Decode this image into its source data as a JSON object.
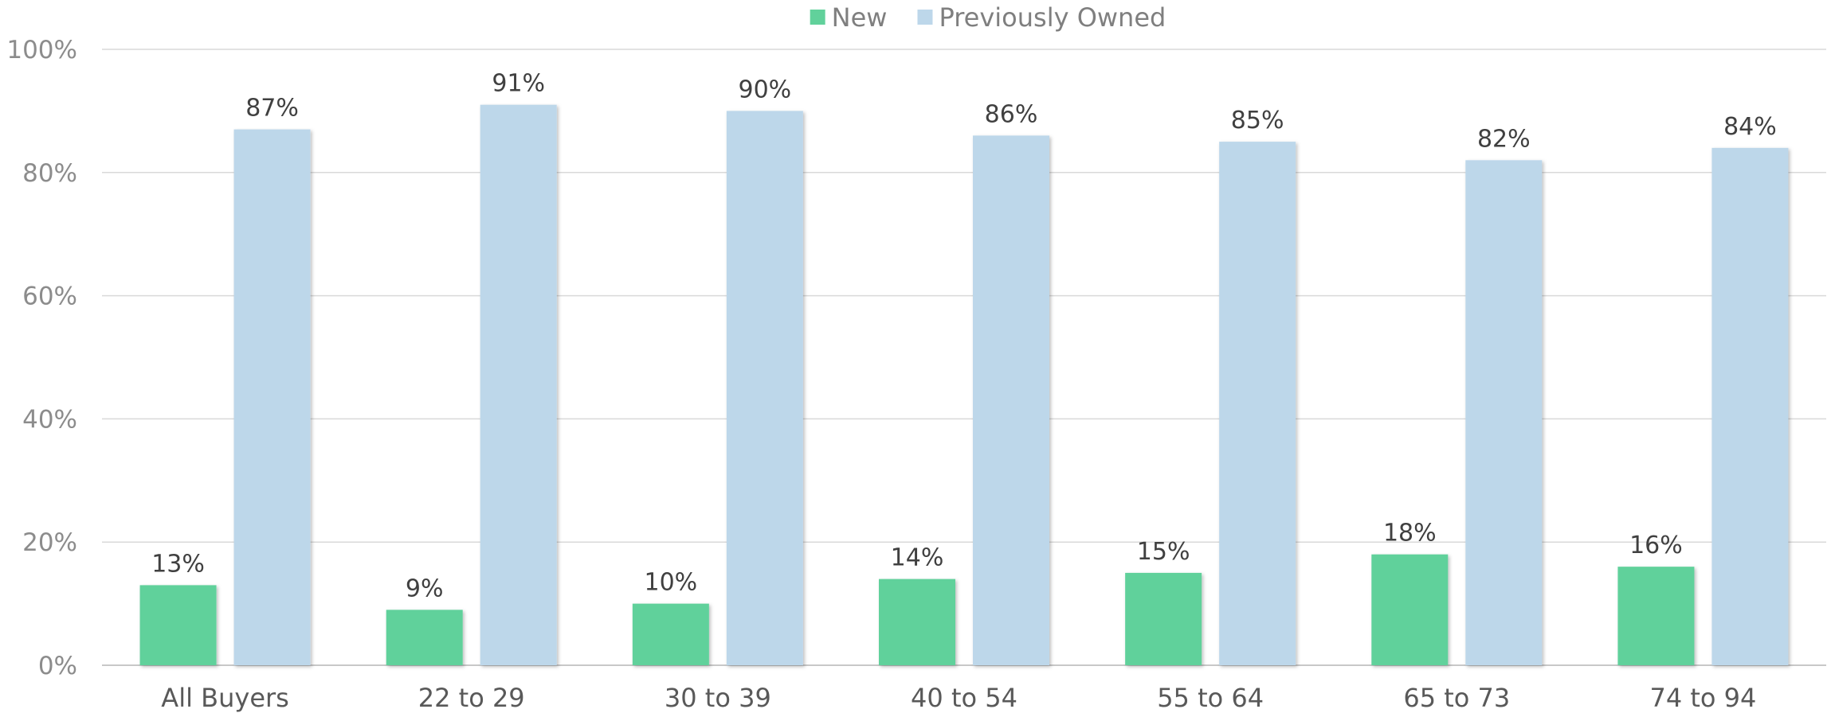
{
  "chart_data": {
    "type": "bar",
    "categories": [
      "All Buyers",
      "22 to 29",
      "30 to 39",
      "40 to 54",
      "55 to 64",
      "65 to 73",
      "74 to 94"
    ],
    "series": [
      {
        "name": "New",
        "values": [
          13,
          9,
          10,
          14,
          15,
          18,
          16
        ],
        "color": "#61d19b"
      },
      {
        "name": "Previously Owned",
        "values": [
          87,
          91,
          90,
          86,
          85,
          82,
          84
        ],
        "color": "#bdd7ea"
      }
    ],
    "value_format": "percent",
    "ylim": [
      0,
      100
    ],
    "yticks": [
      "0%",
      "20%",
      "40%",
      "60%",
      "80%",
      "100%"
    ],
    "ytick_values": [
      0,
      20,
      40,
      60,
      80,
      100
    ],
    "grid": true,
    "legend_position": "top-center",
    "title": "",
    "xlabel": "",
    "ylabel": ""
  }
}
